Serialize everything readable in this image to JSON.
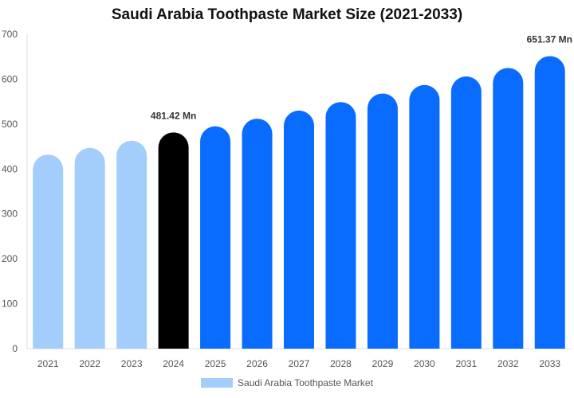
{
  "chart_data": {
    "type": "bar",
    "title": "Saudi Arabia Toothpaste Market Size (2021-2033)",
    "xlabel": "",
    "ylabel": "",
    "categories": [
      "2021",
      "2022",
      "2023",
      "2024",
      "2025",
      "2026",
      "2027",
      "2028",
      "2029",
      "2030",
      "2031",
      "2032",
      "2033"
    ],
    "series": [
      {
        "name": "Saudi Arabia Toothpaste Market",
        "values": [
          432,
          447,
          463,
          481.42,
          495,
          512,
          530,
          549,
          568,
          587,
          606,
          625,
          651.37
        ]
      }
    ],
    "ylim": [
      0,
      700
    ],
    "yticks": [
      0,
      100,
      200,
      300,
      400,
      500,
      600,
      700
    ],
    "grid": false,
    "legend_position": "bottom",
    "annotations": [
      {
        "category": "2024",
        "text": "481.42 Mn"
      },
      {
        "category": "2033",
        "text": "651.37 Mn"
      }
    ],
    "colors": {
      "historical": "#a3cdfb",
      "current": "#000000",
      "forecast": "#0a6cff",
      "legend": "#a3cdfb"
    },
    "bar_color_groups": [
      "historical",
      "historical",
      "historical",
      "current",
      "forecast",
      "forecast",
      "forecast",
      "forecast",
      "forecast",
      "forecast",
      "forecast",
      "forecast",
      "forecast"
    ]
  }
}
